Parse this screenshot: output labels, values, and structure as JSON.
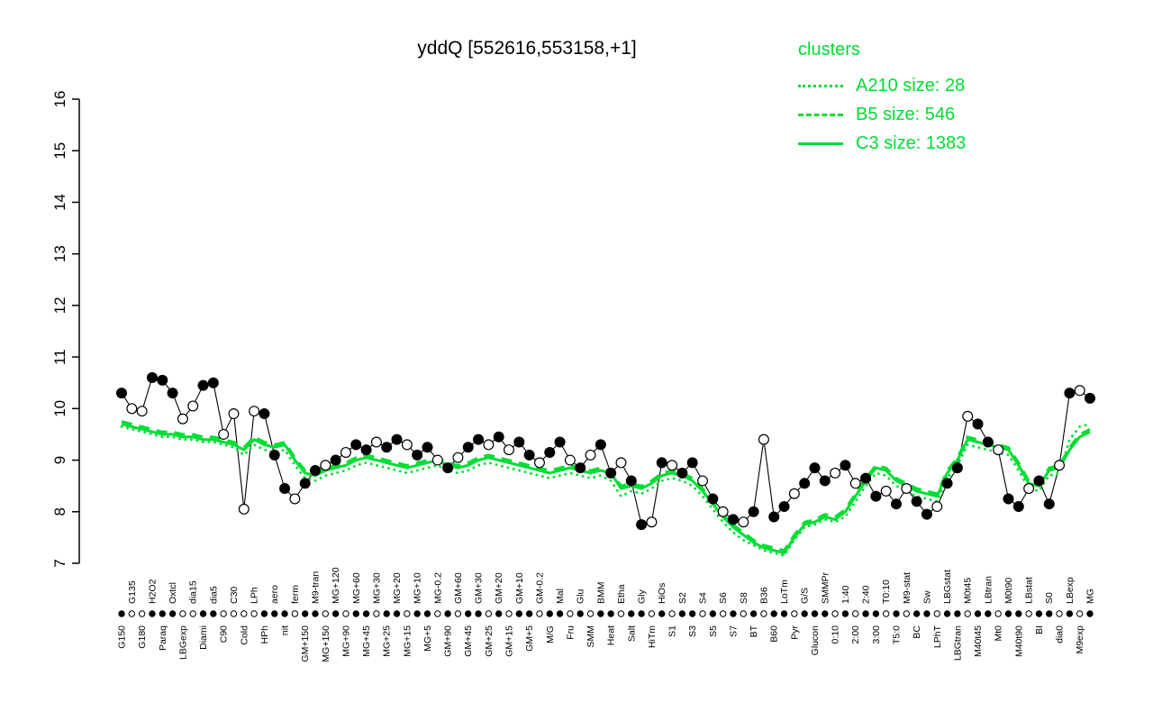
{
  "figure": {
    "title": "yddQ [552616,553158,+1]"
  },
  "legend": {
    "title": "clusters",
    "entries": [
      {
        "name": "A210",
        "size": 28,
        "label": "A210 size: 28",
        "style": "dotted"
      },
      {
        "name": "B5",
        "size": 546,
        "label": "B5 size: 546",
        "style": "dashed"
      },
      {
        "name": "C3",
        "size": 1383,
        "label": "C3 size: 1383",
        "style": "solid"
      }
    ]
  },
  "colors": {
    "cluster_green": "#00dd33",
    "series_black": "#000000",
    "open_marker_fill": "#ffffff",
    "background": "#ffffff"
  },
  "chart_data": {
    "type": "line",
    "title": "yddQ [552616,553158,+1]",
    "ylim": [
      7,
      16
    ],
    "yticks": [
      7,
      8,
      9,
      10,
      11,
      12,
      13,
      14,
      15,
      16
    ],
    "grid": false,
    "legend_position": "top-right",
    "categories": [
      "G150",
      "G135",
      "G180",
      "H2O2",
      "Paraq",
      "Oxtcl",
      "LBGexp",
      "dia15",
      "Diami",
      "dia5",
      "C90",
      "C30",
      "Cold",
      "LPh",
      "HPh",
      "aero",
      "nit",
      "ferm",
      "GM+150",
      "M9-tran",
      "MG+150",
      "MG+120",
      "MG+90",
      "MG+60",
      "MG+45",
      "MG+30",
      "MG+25",
      "MG+20",
      "MG+15",
      "MG+10",
      "MG+5",
      "MG-0.2",
      "GM+90",
      "GM+60",
      "GM+45",
      "GM+30",
      "GM+25",
      "GM+20",
      "GM+15",
      "GM+10",
      "GM+5",
      "GM-0.2",
      "M/G",
      "Mal",
      "Fru",
      "Glu",
      "SMM",
      "BMM",
      "Heat",
      "Etha",
      "Salt",
      "Gly",
      "HiTm",
      "HiOs",
      "S1",
      "S2",
      "S3",
      "S4",
      "S5",
      "S6",
      "S7",
      "S8",
      "BT",
      "B36",
      "B60",
      "LoTm",
      "Pyr",
      "G/S",
      "Glucon",
      "SMMPr",
      "0:10",
      "1:40",
      "2:00",
      "2:40",
      "3:00",
      "T0:10",
      "T5:0",
      "M9-stat",
      "BC",
      "Sw",
      "LPhT",
      "LBGstat",
      "LBGtran",
      "M0t45",
      "M40t45",
      "LBtran",
      "Mt0",
      "M0t90",
      "M40t90",
      "LBstat",
      "BI",
      "S0",
      "dia0",
      "LBexp",
      "M9exp",
      "MG"
    ],
    "marker_fill": [
      "f",
      "o",
      "o",
      "f",
      "f",
      "f",
      "o",
      "o",
      "f",
      "f",
      "o",
      "o",
      "o",
      "o",
      "f",
      "f",
      "f",
      "o",
      "f",
      "f",
      "o",
      "f",
      "o",
      "f",
      "f",
      "o",
      "f",
      "f",
      "o",
      "f",
      "f",
      "o",
      "f",
      "o",
      "f",
      "f",
      "o",
      "f",
      "o",
      "f",
      "f",
      "o",
      "f",
      "f",
      "o",
      "f",
      "o",
      "f",
      "f",
      "o",
      "f",
      "f",
      "o",
      "f",
      "o",
      "f",
      "f",
      "o",
      "f",
      "o",
      "f",
      "o",
      "f",
      "o",
      "f",
      "f",
      "o",
      "f",
      "f",
      "f",
      "o",
      "f",
      "o",
      "f",
      "f",
      "o",
      "f",
      "o",
      "f",
      "f",
      "o",
      "f",
      "f",
      "o",
      "f",
      "f",
      "o",
      "f",
      "f",
      "o",
      "f",
      "f",
      "o",
      "f",
      "o",
      "f"
    ],
    "series": [
      {
        "name": "expression",
        "color": "#000000",
        "style": "line-with-markers",
        "values": [
          10.3,
          10.0,
          9.95,
          10.6,
          10.55,
          10.3,
          9.8,
          10.05,
          10.45,
          10.5,
          9.5,
          9.9,
          8.05,
          9.95,
          9.9,
          9.1,
          8.45,
          8.25,
          8.55,
          8.8,
          8.9,
          9.0,
          9.15,
          9.3,
          9.2,
          9.35,
          9.25,
          9.4,
          9.3,
          9.1,
          9.25,
          9.0,
          8.85,
          9.05,
          9.25,
          9.4,
          9.3,
          9.45,
          9.2,
          9.35,
          9.1,
          8.95,
          9.15,
          9.35,
          9.0,
          8.85,
          9.1,
          9.3,
          8.75,
          8.95,
          8.6,
          7.75,
          7.8,
          8.95,
          8.9,
          8.75,
          8.95,
          8.6,
          8.25,
          8.0,
          7.85,
          7.8,
          8.0,
          9.4,
          7.9,
          8.1,
          8.35,
          8.55,
          8.85,
          8.6,
          8.75,
          8.9,
          8.55,
          8.65,
          8.3,
          8.4,
          8.15,
          8.45,
          8.2,
          7.95,
          8.1,
          8.55,
          8.85,
          9.85,
          9.7,
          9.35,
          9.2,
          8.25,
          8.1,
          8.45,
          8.6,
          8.15,
          8.9,
          10.3,
          10.35,
          10.2
        ]
      },
      {
        "name": "A210",
        "color": "#00dd33",
        "style": "dotted",
        "values": [
          9.65,
          9.6,
          9.55,
          9.5,
          9.45,
          9.45,
          9.4,
          9.4,
          9.35,
          9.35,
          9.3,
          9.25,
          9.1,
          9.3,
          9.2,
          9.15,
          9.2,
          8.9,
          8.65,
          8.6,
          8.7,
          8.75,
          8.8,
          8.9,
          8.95,
          8.9,
          8.85,
          8.8,
          8.75,
          8.8,
          8.85,
          8.9,
          8.8,
          8.75,
          8.8,
          8.9,
          8.95,
          8.9,
          8.85,
          8.8,
          8.75,
          8.7,
          8.65,
          8.7,
          8.75,
          8.7,
          8.65,
          8.7,
          8.6,
          8.3,
          8.4,
          8.35,
          8.45,
          8.6,
          8.65,
          8.6,
          8.5,
          8.3,
          8.05,
          7.8,
          7.6,
          7.45,
          7.35,
          7.25,
          7.2,
          7.15,
          7.45,
          7.7,
          7.75,
          7.85,
          7.8,
          7.9,
          8.2,
          8.5,
          8.75,
          8.7,
          8.5,
          8.4,
          8.3,
          8.25,
          8.2,
          8.65,
          8.9,
          9.3,
          9.25,
          9.2,
          9.15,
          9.1,
          8.8,
          8.45,
          8.4,
          8.7,
          8.75,
          9.4,
          9.65,
          9.7
        ]
      },
      {
        "name": "B5",
        "color": "#00dd33",
        "style": "dashed",
        "values": [
          9.75,
          9.7,
          9.65,
          9.6,
          9.55,
          9.55,
          9.5,
          9.5,
          9.45,
          9.45,
          9.4,
          9.35,
          9.25,
          9.45,
          9.35,
          9.3,
          9.35,
          9.05,
          8.8,
          8.75,
          8.85,
          8.9,
          8.95,
          9.05,
          9.1,
          9.05,
          9.0,
          8.95,
          8.9,
          8.95,
          9.0,
          9.05,
          8.95,
          8.9,
          8.95,
          9.05,
          9.1,
          9.05,
          9.0,
          8.95,
          8.9,
          8.85,
          8.8,
          8.85,
          8.9,
          8.85,
          8.8,
          8.85,
          8.8,
          8.5,
          8.55,
          8.5,
          8.6,
          8.75,
          8.8,
          8.75,
          8.65,
          8.45,
          8.2,
          7.95,
          7.75,
          7.6,
          7.45,
          7.35,
          7.3,
          7.25,
          7.55,
          7.8,
          7.85,
          7.95,
          7.9,
          8.05,
          8.35,
          8.65,
          8.9,
          8.85,
          8.65,
          8.55,
          8.45,
          8.4,
          8.35,
          8.8,
          9.05,
          9.45,
          9.4,
          9.35,
          9.3,
          9.25,
          8.95,
          8.6,
          8.55,
          8.85,
          8.9,
          9.25,
          9.5,
          9.6
        ]
      },
      {
        "name": "C3",
        "color": "#00dd33",
        "style": "solid",
        "values": [
          9.7,
          9.65,
          9.6,
          9.55,
          9.5,
          9.5,
          9.45,
          9.45,
          9.4,
          9.4,
          9.35,
          9.3,
          9.2,
          9.4,
          9.3,
          9.25,
          9.3,
          9.0,
          8.75,
          8.7,
          8.8,
          8.85,
          8.9,
          9.0,
          9.05,
          9.0,
          8.95,
          8.9,
          8.85,
          8.9,
          8.95,
          9.0,
          8.9,
          8.85,
          8.9,
          9.0,
          9.05,
          9.0,
          8.95,
          8.9,
          8.85,
          8.8,
          8.75,
          8.8,
          8.85,
          8.8,
          8.75,
          8.8,
          8.75,
          8.45,
          8.5,
          8.45,
          8.55,
          8.7,
          8.75,
          8.7,
          8.6,
          8.4,
          8.15,
          7.9,
          7.7,
          7.55,
          7.4,
          7.3,
          7.25,
          7.2,
          7.5,
          7.75,
          7.8,
          7.9,
          7.85,
          8.0,
          8.3,
          8.6,
          8.85,
          8.8,
          8.6,
          8.5,
          8.4,
          8.35,
          8.3,
          8.75,
          9.0,
          9.4,
          9.35,
          9.3,
          9.25,
          9.2,
          8.9,
          8.55,
          8.5,
          8.8,
          8.85,
          9.2,
          9.45,
          9.55
        ]
      }
    ]
  }
}
